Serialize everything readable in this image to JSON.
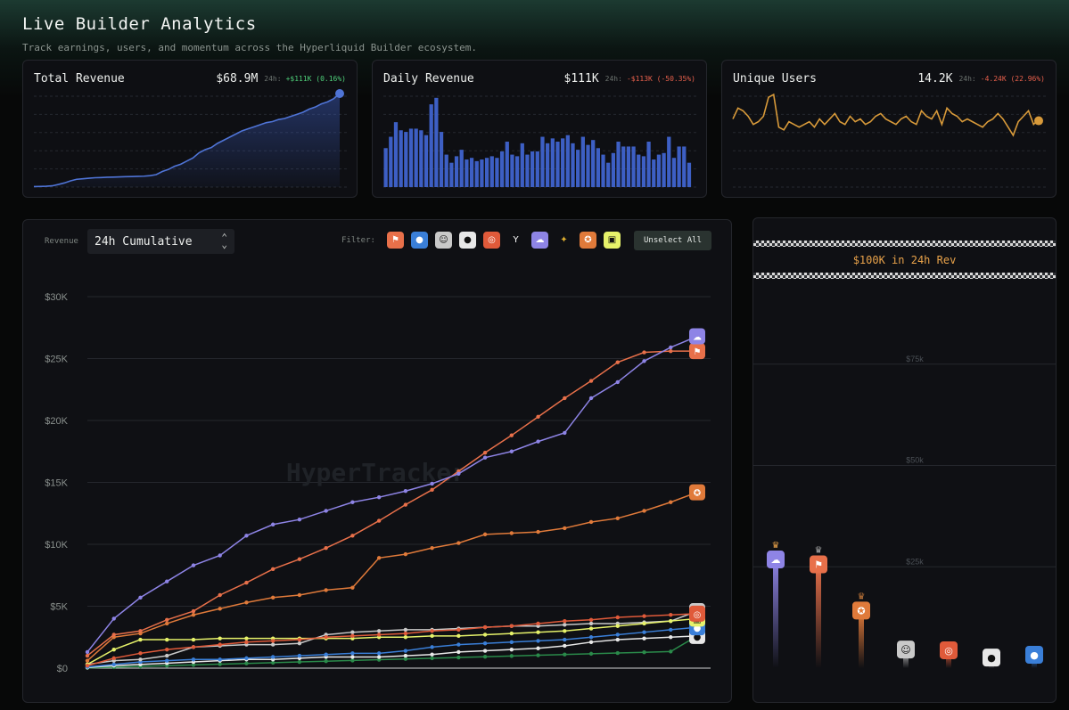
{
  "header": {
    "title": "Live Builder Analytics",
    "subtitle": "Track earnings, users, and momentum across the Hyperliquid Builder ecosystem."
  },
  "cards": {
    "total_revenue": {
      "title": "Total Revenue",
      "value": "$68.9M",
      "period": "24h:",
      "delta": "+$111K (0.16%)",
      "delta_color": "#4fd17a",
      "spark": [
        0.5,
        0.6,
        0.8,
        1.2,
        2.5,
        4,
        6,
        7.5,
        8,
        8.5,
        9,
        9.2,
        9.5,
        9.6,
        9.8,
        10,
        10.1,
        10.3,
        10.5,
        11,
        12,
        15,
        17,
        20,
        22,
        25,
        28,
        33,
        36,
        38,
        42,
        45,
        48,
        51,
        54,
        56,
        58,
        60,
        62,
        63,
        65,
        66,
        68,
        70,
        72,
        75,
        77,
        80,
        82,
        85,
        90
      ]
    },
    "daily_revenue": {
      "title": "Daily Revenue",
      "value": "$111K",
      "period": "24h:",
      "delta": "-$113K (-50.35%)",
      "delta_color": "#e8604c",
      "bars": [
        48,
        62,
        80,
        70,
        68,
        72,
        72,
        70,
        64,
        102,
        110,
        68,
        40,
        30,
        38,
        46,
        34,
        36,
        32,
        34,
        36,
        38,
        36,
        44,
        56,
        40,
        38,
        54,
        40,
        44,
        44,
        62,
        54,
        60,
        56,
        60,
        64,
        54,
        46,
        62,
        52,
        58,
        48,
        40,
        30,
        42,
        56,
        50,
        50,
        50,
        40,
        38,
        56,
        34,
        40,
        42,
        62,
        36,
        50,
        50,
        30
      ],
      "bar_color": "#3d5fc4"
    },
    "unique_users": {
      "title": "Unique Users",
      "value": "14.2K",
      "period": "24h:",
      "delta": "-4.24K (22.96%)",
      "delta_color": "#e8604c",
      "spark": [
        12,
        16,
        15,
        13,
        10,
        11,
        13,
        20,
        21,
        9,
        8,
        11,
        10,
        9,
        10,
        11,
        9,
        12,
        10,
        12,
        14,
        11,
        10,
        13,
        11,
        12,
        10,
        11,
        13,
        14,
        12,
        11,
        10,
        12,
        13,
        11,
        10,
        15,
        13,
        12,
        15,
        10,
        16,
        14,
        13,
        11,
        12,
        11,
        10,
        9,
        11,
        12,
        14,
        12,
        9,
        6,
        11,
        13,
        15,
        10,
        12
      ],
      "line_color": "#d89a3a"
    }
  },
  "controls": {
    "revenue_label": "Revenue",
    "select_value": "24h Cumulative",
    "filter_label": "Filter:",
    "unselect_label": "Unselect All"
  },
  "builders": [
    {
      "icon": "flag-icon",
      "color": "#e8704a",
      "glyph": "⚑"
    },
    {
      "icon": "dots-icon",
      "color": "#3a7fd8",
      "glyph": "●"
    },
    {
      "icon": "portrait-icon",
      "color": "#c9c9c9",
      "glyph": "☺"
    },
    {
      "icon": "drop-icon",
      "color": "#e8e8e8",
      "glyph": "●"
    },
    {
      "icon": "ring-icon",
      "color": "#e05a3a",
      "glyph": "◎"
    },
    {
      "icon": "y-icon",
      "color": "#ffffff",
      "glyph": "Y"
    },
    {
      "icon": "ghost-icon",
      "color": "#8e84e6",
      "glyph": "☁"
    },
    {
      "icon": "star-icon",
      "color": "#2a8a4a",
      "glyph": "✦"
    },
    {
      "icon": "fox-icon",
      "color": "#e07a3a",
      "glyph": "✪"
    },
    {
      "icon": "box-icon",
      "color": "#e6f26a",
      "glyph": "▣"
    }
  ],
  "chart_data": [
    {
      "type": "line",
      "title": "",
      "ylabel": "Revenue",
      "ylim": [
        0,
        30000
      ],
      "y_ticks": [
        "$0",
        "$5K",
        "$10K",
        "$15K",
        "$20K",
        "$25K",
        "$30K"
      ],
      "watermark": "HyperTracker",
      "series": [
        {
          "icon": "ghost-icon",
          "color": "#8e84e6",
          "values": [
            1300,
            4000,
            5700,
            7000,
            8300,
            9100,
            10700,
            11600,
            12000,
            12700,
            13400,
            13800,
            14300,
            14900,
            15700,
            17000,
            17500,
            18300,
            19000,
            21800,
            23100,
            24800,
            25900,
            26800
          ]
        },
        {
          "icon": "flag-icon",
          "color": "#e8704a",
          "values": [
            1000,
            2700,
            3000,
            3900,
            4600,
            5900,
            6900,
            8000,
            8800,
            9700,
            10700,
            11900,
            13200,
            14400,
            15900,
            17400,
            18800,
            20300,
            21800,
            23200,
            24700,
            25500,
            25600,
            25600
          ]
        },
        {
          "icon": "fox-icon",
          "color": "#e07a3a",
          "values": [
            600,
            2500,
            2800,
            3600,
            4300,
            4800,
            5300,
            5700,
            5900,
            6300,
            6500,
            8900,
            9200,
            9700,
            10100,
            10800,
            10900,
            11000,
            11300,
            11800,
            12100,
            12700,
            13400,
            14200
          ]
        },
        {
          "icon": "ring-icon",
          "color": "#e05a3a",
          "values": [
            200,
            800,
            1200,
            1500,
            1700,
            1900,
            2100,
            2200,
            2300,
            2500,
            2600,
            2700,
            2800,
            3000,
            3100,
            3300,
            3400,
            3600,
            3800,
            3900,
            4100,
            4200,
            4300,
            4400
          ]
        },
        {
          "icon": "box-icon",
          "color": "#e6f26a",
          "values": [
            300,
            1500,
            2300,
            2300,
            2300,
            2400,
            2400,
            2400,
            2400,
            2400,
            2400,
            2500,
            2500,
            2600,
            2600,
            2700,
            2800,
            2900,
            3000,
            3200,
            3400,
            3600,
            3800,
            4000
          ]
        },
        {
          "icon": "portrait-icon",
          "color": "#c9c9c9",
          "values": [
            300,
            600,
            700,
            1000,
            1700,
            1800,
            1900,
            1900,
            2000,
            2700,
            2900,
            3000,
            3100,
            3100,
            3200,
            3300,
            3400,
            3400,
            3500,
            3600,
            3600,
            3700,
            3800,
            4600
          ]
        },
        {
          "icon": "dots-icon",
          "color": "#3a7fd8",
          "values": [
            100,
            300,
            500,
            600,
            700,
            700,
            800,
            900,
            1000,
            1100,
            1200,
            1200,
            1400,
            1700,
            1900,
            2000,
            2100,
            2200,
            2300,
            2500,
            2700,
            2900,
            3100,
            3300
          ]
        },
        {
          "icon": "drop-icon",
          "color": "#e8e8e8",
          "values": [
            50,
            200,
            300,
            400,
            500,
            600,
            700,
            700,
            800,
            900,
            900,
            900,
            1000,
            1100,
            1300,
            1400,
            1500,
            1600,
            1800,
            2100,
            2300,
            2400,
            2500,
            2600
          ]
        },
        {
          "icon": "star-icon",
          "color": "#2a8a4a",
          "values": [
            20,
            80,
            140,
            200,
            260,
            320,
            380,
            440,
            500,
            560,
            620,
            680,
            740,
            800,
            860,
            920,
            980,
            1040,
            1100,
            1160,
            1220,
            1280,
            1340,
            2600
          ]
        }
      ]
    },
    {
      "type": "bar",
      "title": "$100K in 24h Rev",
      "ylim": [
        0,
        100000
      ],
      "y_ticks": [
        "$25k",
        "$50k",
        "$75k"
      ],
      "series": [
        {
          "icon": "ghost-icon",
          "color": "#8e84e6",
          "value": 26800,
          "crown": "#e8a24a"
        },
        {
          "icon": "flag-icon",
          "color": "#e8704a",
          "value": 25600,
          "crown": "#aaaaaa"
        },
        {
          "icon": "fox-icon",
          "color": "#e07a3a",
          "value": 14200,
          "crown": "#c77a3a"
        },
        {
          "icon": "portrait-icon",
          "color": "#c9c9c9",
          "value": 4600
        },
        {
          "icon": "ring-icon",
          "color": "#e05a3a",
          "value": 4400
        },
        {
          "icon": "drop-icon",
          "color": "#e8e8e8",
          "value": 2600
        },
        {
          "icon": "dots-icon",
          "color": "#3a7fd8",
          "value": 3300
        }
      ]
    }
  ]
}
